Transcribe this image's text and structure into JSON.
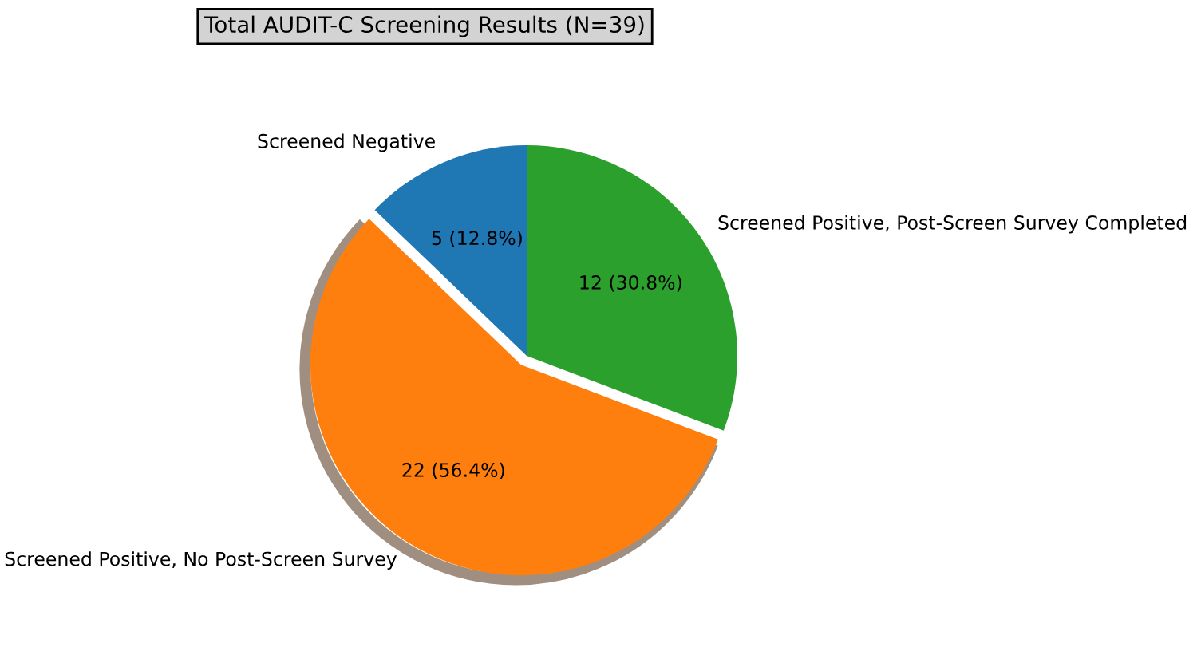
{
  "chart_data": {
    "type": "pie",
    "title": "Total AUDIT-C Screening Results (N=39)",
    "categories": [
      "Screened Negative",
      "Screened Positive, No Post-Screen Survey",
      "Screened Positive, Post-Screen Survey Completed"
    ],
    "values": [
      5,
      22,
      12
    ],
    "colors": [
      "#1f77b4",
      "#ff7f0e",
      "#2ca02c"
    ],
    "value_labels": [
      "5 (12.8%)",
      "22 (56.4%)",
      "12 (30.8%)"
    ]
  }
}
